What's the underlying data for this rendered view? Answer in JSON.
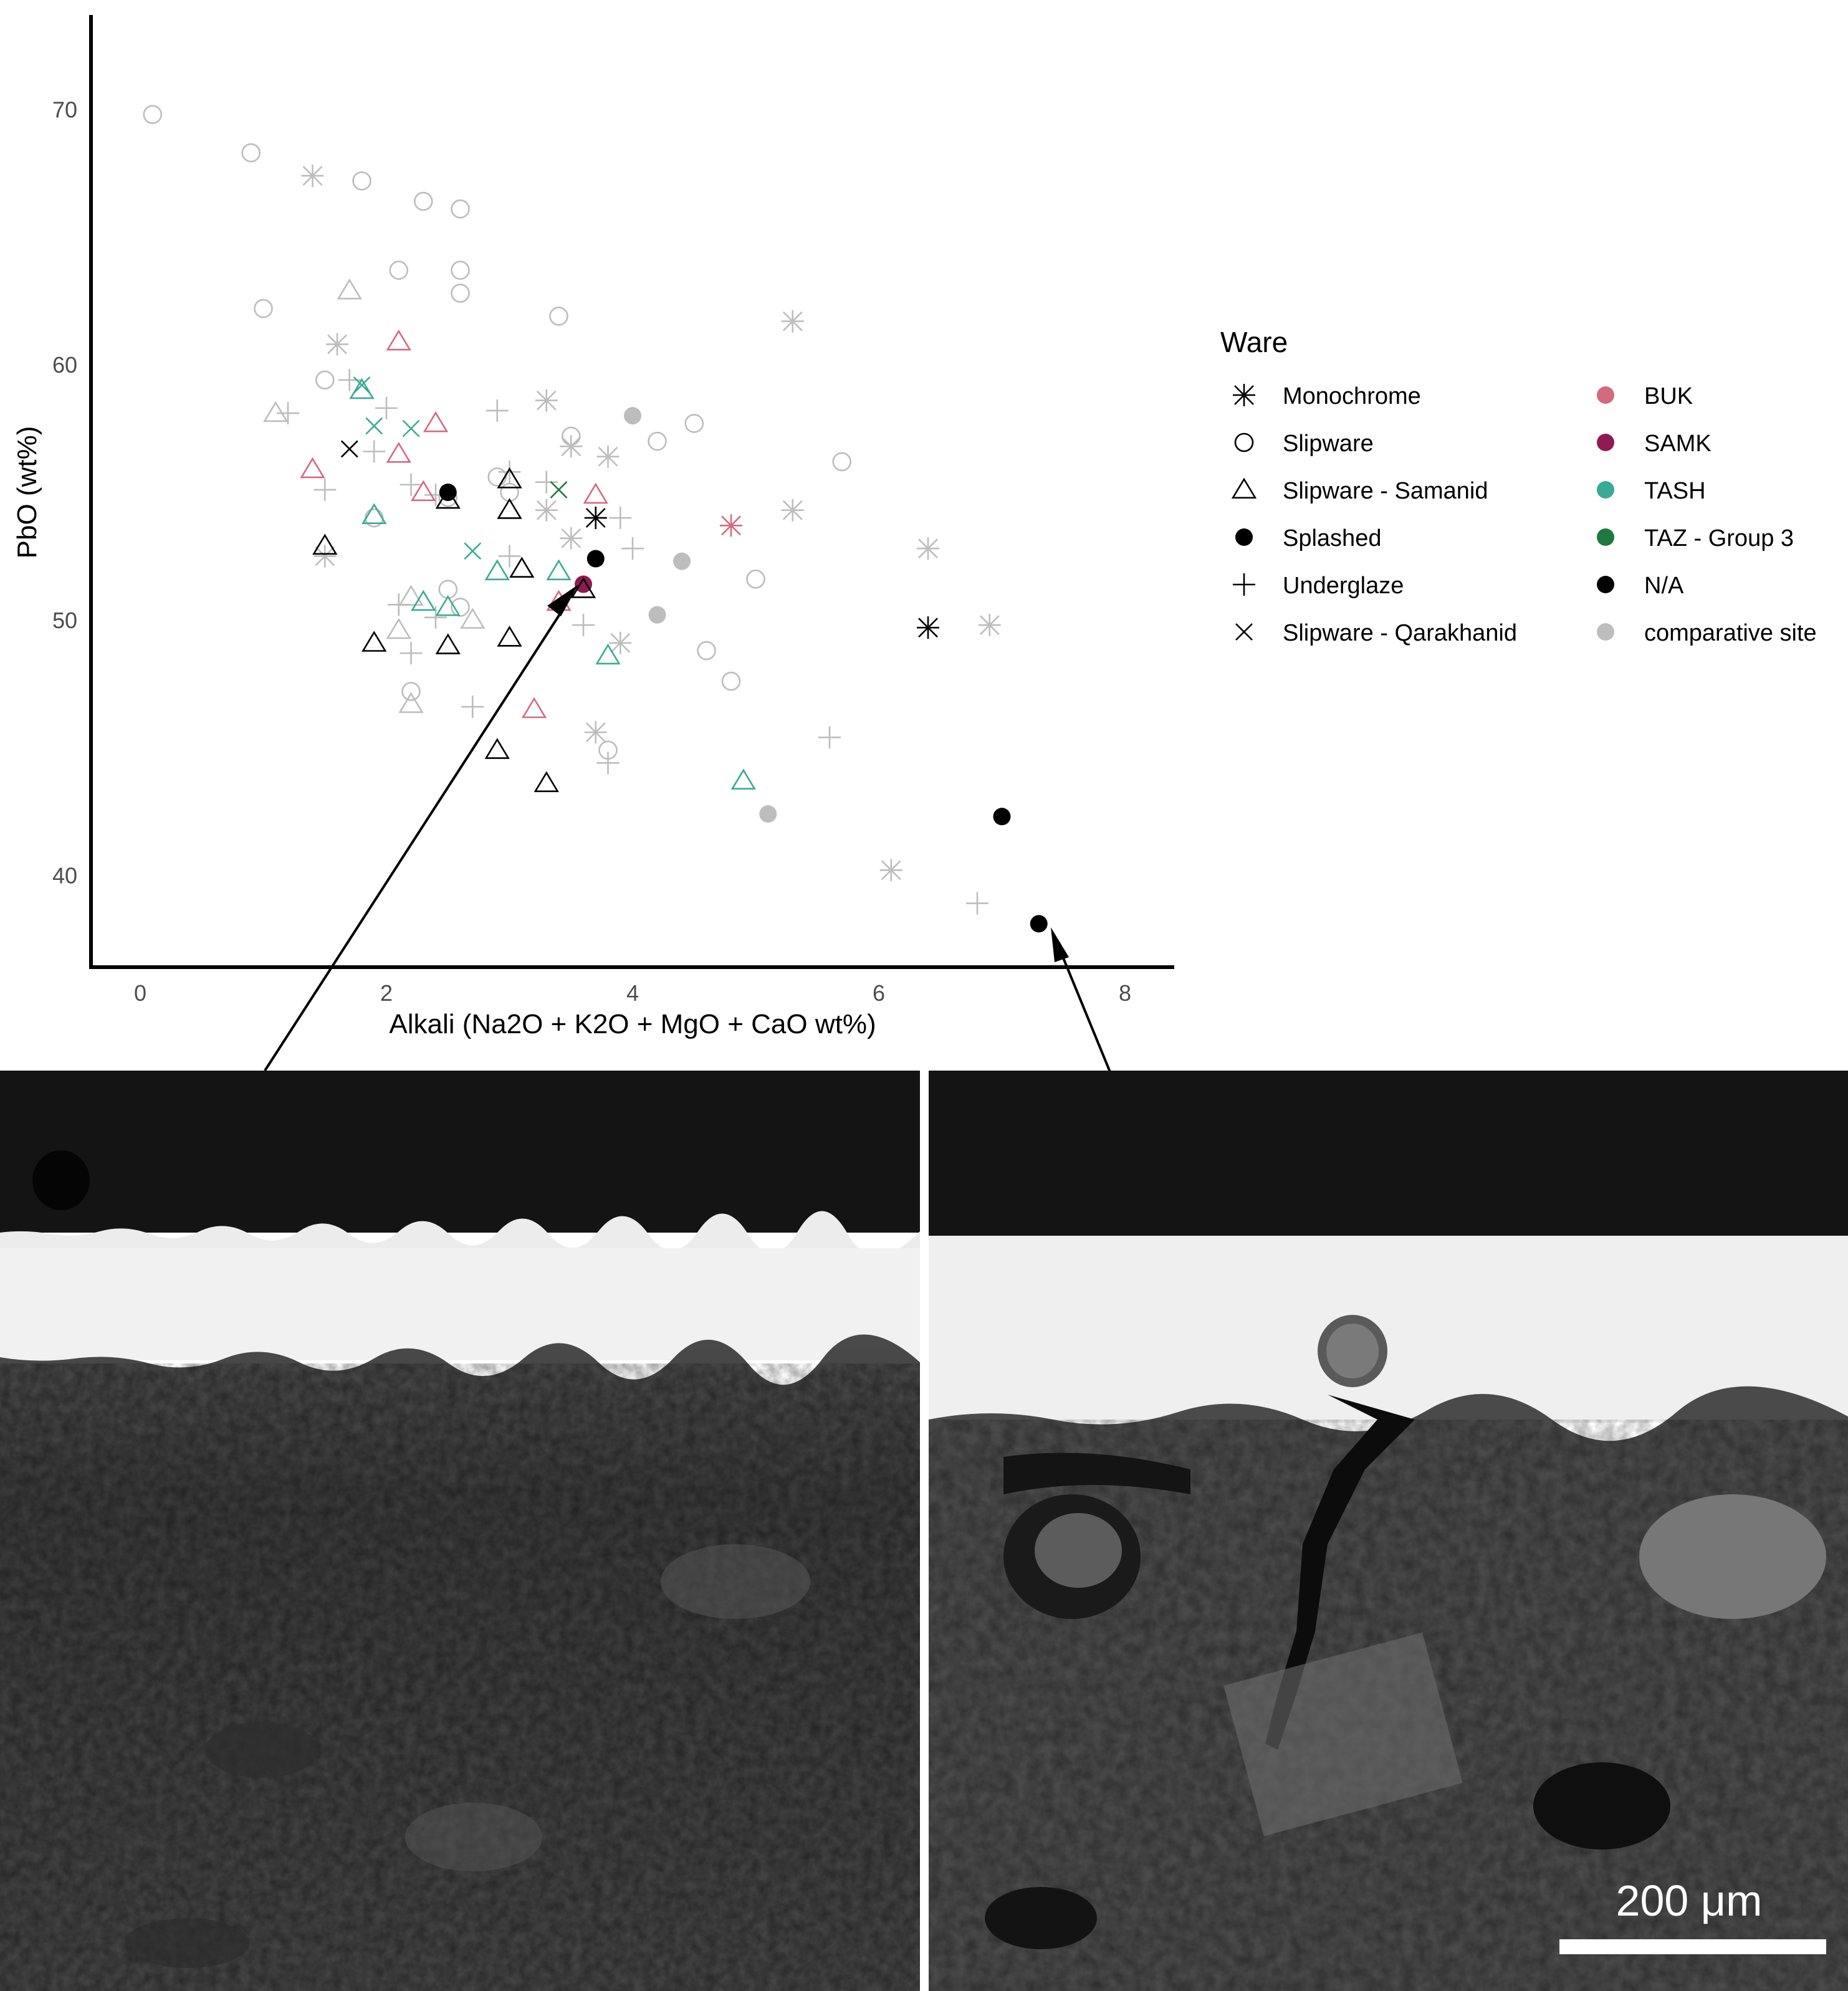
{
  "chart_data": {
    "type": "scatter",
    "xlabel": "Alkali (Na2O + K2O + MgO + CaO wt%)",
    "ylabel": "PbO (wt%)",
    "xlim": [
      -0.4,
      8.4
    ],
    "ylim": [
      36.4,
      73.7
    ],
    "x_ticks": [
      "0",
      "2",
      "4",
      "6",
      "8"
    ],
    "y_ticks": [
      "40",
      "50",
      "60",
      "70"
    ],
    "grid": false,
    "legend_position": "right",
    "legend_title": "Ware",
    "shape_legend": [
      {
        "label": "Monochrome",
        "shape": "asterisk"
      },
      {
        "label": "Slipware",
        "shape": "circle-open"
      },
      {
        "label": "Slipware - Samanid",
        "shape": "triangle-open"
      },
      {
        "label": "Splashed",
        "shape": "circle-filled"
      },
      {
        "label": "Underglaze",
        "shape": "plus"
      },
      {
        "label": "Slipware - Qarakhanid",
        "shape": "cross"
      }
    ],
    "color_legend": [
      {
        "label": "BUK",
        "color": "#d46a7e"
      },
      {
        "label": "SAMK",
        "color": "#8e1a56"
      },
      {
        "label": "TASH",
        "color": "#3aaa96"
      },
      {
        "label": "TAZ - Group 3",
        "color": "#1d7a3c"
      },
      {
        "label": "N/A",
        "color": "#000000"
      },
      {
        "label": "comparative site",
        "color": "#bdbdbd"
      }
    ],
    "points": [
      {
        "x": 0.1,
        "y": 69.8,
        "shape": "circle-open",
        "group": "comparative site"
      },
      {
        "x": 0.9,
        "y": 68.3,
        "shape": "circle-open",
        "group": "comparative site"
      },
      {
        "x": 1.8,
        "y": 67.2,
        "shape": "circle-open",
        "group": "comparative site"
      },
      {
        "x": 2.3,
        "y": 66.4,
        "shape": "circle-open",
        "group": "comparative site"
      },
      {
        "x": 2.6,
        "y": 66.1,
        "shape": "circle-open",
        "group": "comparative site"
      },
      {
        "x": 2.1,
        "y": 63.7,
        "shape": "circle-open",
        "group": "comparative site"
      },
      {
        "x": 2.6,
        "y": 63.7,
        "shape": "circle-open",
        "group": "comparative site"
      },
      {
        "x": 2.6,
        "y": 62.8,
        "shape": "circle-open",
        "group": "comparative site"
      },
      {
        "x": 1.0,
        "y": 62.2,
        "shape": "circle-open",
        "group": "comparative site"
      },
      {
        "x": 3.4,
        "y": 61.9,
        "shape": "circle-open",
        "group": "comparative site"
      },
      {
        "x": 1.5,
        "y": 59.4,
        "shape": "circle-open",
        "group": "comparative site"
      },
      {
        "x": 1.9,
        "y": 54.0,
        "shape": "circle-open",
        "group": "comparative site"
      },
      {
        "x": 3.5,
        "y": 57.2,
        "shape": "circle-open",
        "group": "comparative site"
      },
      {
        "x": 4.2,
        "y": 57.0,
        "shape": "circle-open",
        "group": "comparative site"
      },
      {
        "x": 4.5,
        "y": 57.7,
        "shape": "circle-open",
        "group": "comparative site"
      },
      {
        "x": 5.7,
        "y": 56.2,
        "shape": "circle-open",
        "group": "comparative site"
      },
      {
        "x": 2.9,
        "y": 55.6,
        "shape": "circle-open",
        "group": "comparative site"
      },
      {
        "x": 3.0,
        "y": 55.0,
        "shape": "circle-open",
        "group": "comparative site"
      },
      {
        "x": 2.5,
        "y": 54.8,
        "shape": "circle-open",
        "group": "comparative site"
      },
      {
        "x": 2.5,
        "y": 51.2,
        "shape": "circle-open",
        "group": "comparative site"
      },
      {
        "x": 2.6,
        "y": 50.5,
        "shape": "circle-open",
        "group": "comparative site"
      },
      {
        "x": 5.0,
        "y": 51.6,
        "shape": "circle-open",
        "group": "comparative site"
      },
      {
        "x": 4.6,
        "y": 48.8,
        "shape": "circle-open",
        "group": "comparative site"
      },
      {
        "x": 4.8,
        "y": 47.6,
        "shape": "circle-open",
        "group": "comparative site"
      },
      {
        "x": 2.2,
        "y": 47.2,
        "shape": "circle-open",
        "group": "comparative site"
      },
      {
        "x": 3.8,
        "y": 44.9,
        "shape": "circle-open",
        "group": "comparative site"
      },
      {
        "x": 1.4,
        "y": 67.4,
        "shape": "asterisk",
        "group": "comparative site"
      },
      {
        "x": 1.6,
        "y": 60.8,
        "shape": "asterisk",
        "group": "comparative site"
      },
      {
        "x": 5.3,
        "y": 61.7,
        "shape": "asterisk",
        "group": "comparative site"
      },
      {
        "x": 3.3,
        "y": 58.6,
        "shape": "asterisk",
        "group": "comparative site"
      },
      {
        "x": 3.5,
        "y": 56.8,
        "shape": "asterisk",
        "group": "comparative site"
      },
      {
        "x": 3.8,
        "y": 56.4,
        "shape": "asterisk",
        "group": "comparative site"
      },
      {
        "x": 5.3,
        "y": 54.3,
        "shape": "asterisk",
        "group": "comparative site"
      },
      {
        "x": 3.3,
        "y": 54.3,
        "shape": "asterisk",
        "group": "comparative site"
      },
      {
        "x": 3.5,
        "y": 53.2,
        "shape": "asterisk",
        "group": "comparative site"
      },
      {
        "x": 1.5,
        "y": 52.5,
        "shape": "asterisk",
        "group": "comparative site"
      },
      {
        "x": 6.4,
        "y": 52.8,
        "shape": "asterisk",
        "group": "comparative site"
      },
      {
        "x": 6.9,
        "y": 49.8,
        "shape": "asterisk",
        "group": "comparative site"
      },
      {
        "x": 3.9,
        "y": 49.1,
        "shape": "asterisk",
        "group": "comparative site"
      },
      {
        "x": 3.7,
        "y": 45.6,
        "shape": "asterisk",
        "group": "comparative site"
      },
      {
        "x": 6.1,
        "y": 40.2,
        "shape": "asterisk",
        "group": "comparative site"
      },
      {
        "x": 1.2,
        "y": 58.1,
        "shape": "plus",
        "group": "comparative site"
      },
      {
        "x": 1.7,
        "y": 59.4,
        "shape": "plus",
        "group": "comparative site"
      },
      {
        "x": 2.0,
        "y": 58.3,
        "shape": "plus",
        "group": "comparative site"
      },
      {
        "x": 2.9,
        "y": 58.2,
        "shape": "plus",
        "group": "comparative site"
      },
      {
        "x": 1.9,
        "y": 56.6,
        "shape": "plus",
        "group": "comparative site"
      },
      {
        "x": 2.2,
        "y": 55.3,
        "shape": "plus",
        "group": "comparative site"
      },
      {
        "x": 3.0,
        "y": 55.8,
        "shape": "plus",
        "group": "comparative site"
      },
      {
        "x": 3.3,
        "y": 55.4,
        "shape": "plus",
        "group": "comparative site"
      },
      {
        "x": 1.5,
        "y": 55.1,
        "shape": "plus",
        "group": "comparative site"
      },
      {
        "x": 2.4,
        "y": 54.9,
        "shape": "plus",
        "group": "comparative site"
      },
      {
        "x": 3.9,
        "y": 54.0,
        "shape": "plus",
        "group": "comparative site"
      },
      {
        "x": 3.0,
        "y": 52.5,
        "shape": "plus",
        "group": "comparative site"
      },
      {
        "x": 4.0,
        "y": 52.8,
        "shape": "plus",
        "group": "comparative site"
      },
      {
        "x": 2.1,
        "y": 50.6,
        "shape": "plus",
        "group": "comparative site"
      },
      {
        "x": 2.4,
        "y": 50.1,
        "shape": "plus",
        "group": "comparative site"
      },
      {
        "x": 3.6,
        "y": 49.8,
        "shape": "plus",
        "group": "comparative site"
      },
      {
        "x": 2.2,
        "y": 48.7,
        "shape": "plus",
        "group": "comparative site"
      },
      {
        "x": 2.7,
        "y": 46.6,
        "shape": "plus",
        "group": "comparative site"
      },
      {
        "x": 3.8,
        "y": 44.4,
        "shape": "plus",
        "group": "comparative site"
      },
      {
        "x": 5.6,
        "y": 45.4,
        "shape": "plus",
        "group": "comparative site"
      },
      {
        "x": 6.8,
        "y": 38.9,
        "shape": "plus",
        "group": "comparative site"
      },
      {
        "x": 1.1,
        "y": 58.1,
        "shape": "triangle-open",
        "group": "comparative site"
      },
      {
        "x": 1.7,
        "y": 62.9,
        "shape": "triangle-open",
        "group": "comparative site"
      },
      {
        "x": 2.2,
        "y": 50.9,
        "shape": "triangle-open",
        "group": "comparative site"
      },
      {
        "x": 2.1,
        "y": 49.6,
        "shape": "triangle-open",
        "group": "comparative site"
      },
      {
        "x": 2.2,
        "y": 46.7,
        "shape": "triangle-open",
        "group": "comparative site"
      },
      {
        "x": 2.7,
        "y": 50.0,
        "shape": "triangle-open",
        "group": "comparative site"
      },
      {
        "x": 4.0,
        "y": 58.0,
        "shape": "circle-filled",
        "group": "comparative site"
      },
      {
        "x": 4.4,
        "y": 52.3,
        "shape": "circle-filled",
        "group": "comparative site"
      },
      {
        "x": 4.2,
        "y": 50.2,
        "shape": "circle-filled",
        "group": "comparative site"
      },
      {
        "x": 5.1,
        "y": 42.4,
        "shape": "circle-filled",
        "group": "comparative site"
      },
      {
        "x": 1.4,
        "y": 55.9,
        "shape": "triangle-open",
        "group": "BUK"
      },
      {
        "x": 2.1,
        "y": 60.9,
        "shape": "triangle-open",
        "group": "BUK"
      },
      {
        "x": 2.4,
        "y": 57.7,
        "shape": "triangle-open",
        "group": "BUK"
      },
      {
        "x": 2.1,
        "y": 56.5,
        "shape": "triangle-open",
        "group": "BUK"
      },
      {
        "x": 2.3,
        "y": 55.0,
        "shape": "triangle-open",
        "group": "BUK"
      },
      {
        "x": 3.7,
        "y": 54.9,
        "shape": "triangle-open",
        "group": "BUK"
      },
      {
        "x": 3.4,
        "y": 50.7,
        "shape": "triangle-open",
        "group": "BUK"
      },
      {
        "x": 3.2,
        "y": 46.5,
        "shape": "triangle-open",
        "group": "BUK"
      },
      {
        "x": 4.8,
        "y": 53.7,
        "shape": "asterisk",
        "group": "BUK"
      },
      {
        "x": 3.6,
        "y": 51.4,
        "shape": "circle-filled",
        "group": "SAMK"
      },
      {
        "x": 1.8,
        "y": 59.0,
        "shape": "triangle-open",
        "group": "TASH"
      },
      {
        "x": 1.9,
        "y": 54.1,
        "shape": "triangle-open",
        "group": "TASH"
      },
      {
        "x": 2.3,
        "y": 50.7,
        "shape": "triangle-open",
        "group": "TASH"
      },
      {
        "x": 2.5,
        "y": 50.5,
        "shape": "triangle-open",
        "group": "TASH"
      },
      {
        "x": 2.9,
        "y": 51.9,
        "shape": "triangle-open",
        "group": "TASH"
      },
      {
        "x": 3.4,
        "y": 51.9,
        "shape": "triangle-open",
        "group": "TASH"
      },
      {
        "x": 3.8,
        "y": 48.6,
        "shape": "triangle-open",
        "group": "TASH"
      },
      {
        "x": 4.9,
        "y": 43.7,
        "shape": "triangle-open",
        "group": "TASH"
      },
      {
        "x": 1.8,
        "y": 59.2,
        "shape": "cross",
        "group": "TASH"
      },
      {
        "x": 1.9,
        "y": 57.6,
        "shape": "cross",
        "group": "TASH"
      },
      {
        "x": 2.2,
        "y": 57.5,
        "shape": "cross",
        "group": "TASH"
      },
      {
        "x": 2.7,
        "y": 52.7,
        "shape": "cross",
        "group": "TASH"
      },
      {
        "x": 3.4,
        "y": 55.1,
        "shape": "cross",
        "group": "TAZ - Group 3"
      },
      {
        "x": 1.5,
        "y": 52.9,
        "shape": "triangle-open",
        "group": "N/A"
      },
      {
        "x": 2.5,
        "y": 54.7,
        "shape": "triangle-open",
        "group": "N/A"
      },
      {
        "x": 3.0,
        "y": 55.5,
        "shape": "triangle-open",
        "group": "N/A"
      },
      {
        "x": 3.0,
        "y": 54.3,
        "shape": "triangle-open",
        "group": "N/A"
      },
      {
        "x": 3.1,
        "y": 52.0,
        "shape": "triangle-open",
        "group": "N/A"
      },
      {
        "x": 1.9,
        "y": 49.1,
        "shape": "triangle-open",
        "group": "N/A"
      },
      {
        "x": 2.5,
        "y": 49.0,
        "shape": "triangle-open",
        "group": "N/A"
      },
      {
        "x": 3.0,
        "y": 49.3,
        "shape": "triangle-open",
        "group": "N/A"
      },
      {
        "x": 2.9,
        "y": 44.9,
        "shape": "triangle-open",
        "group": "N/A"
      },
      {
        "x": 3.3,
        "y": 43.6,
        "shape": "triangle-open",
        "group": "N/A"
      },
      {
        "x": 3.6,
        "y": 51.2,
        "shape": "triangle-open",
        "group": "N/A"
      },
      {
        "x": 1.7,
        "y": 56.7,
        "shape": "cross",
        "group": "N/A"
      },
      {
        "x": 3.7,
        "y": 54.0,
        "shape": "asterisk",
        "group": "N/A"
      },
      {
        "x": 6.4,
        "y": 49.7,
        "shape": "asterisk",
        "group": "N/A"
      },
      {
        "x": 2.5,
        "y": 55.0,
        "shape": "circle-filled",
        "group": "N/A"
      },
      {
        "x": 3.7,
        "y": 52.4,
        "shape": "circle-filled",
        "group": "N/A"
      },
      {
        "x": 7.0,
        "y": 42.3,
        "shape": "circle-filled",
        "group": "N/A"
      },
      {
        "x": 7.3,
        "y": 38.1,
        "shape": "circle-filled",
        "group": "N/A"
      }
    ]
  },
  "micrographs": {
    "scale_bar_label": "200 μm"
  }
}
